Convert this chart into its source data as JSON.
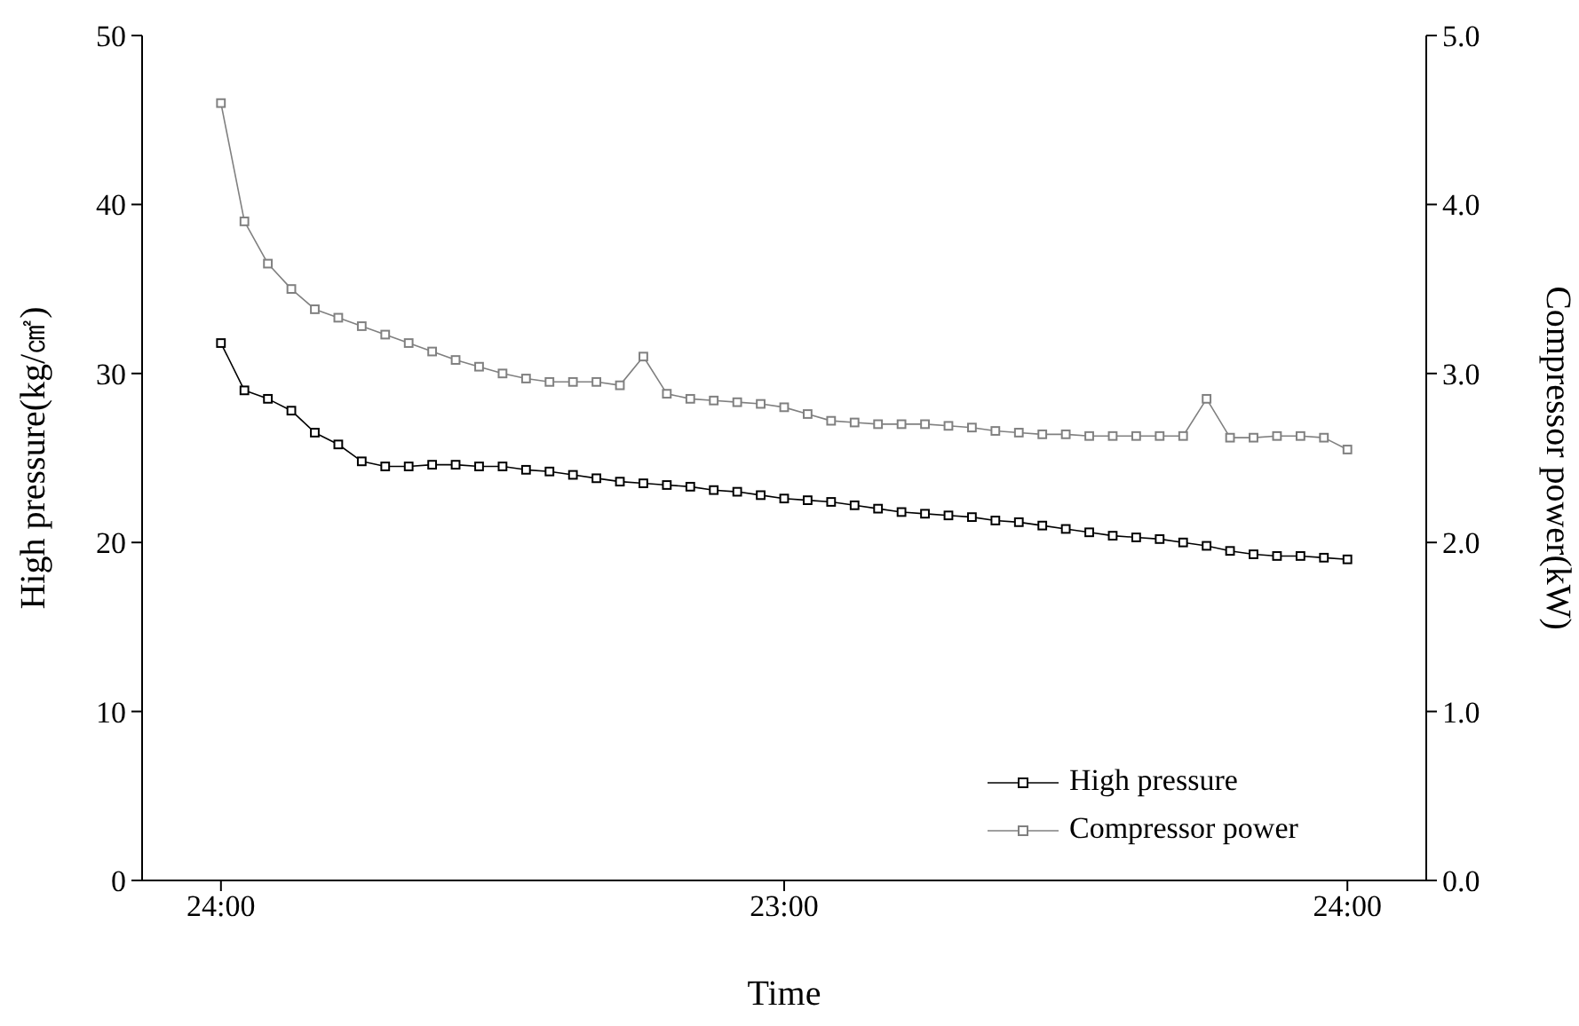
{
  "chart_data": {
    "type": "line",
    "xlabel": "Time",
    "ylabel": "High pressure(kg/㎠)",
    "y2label": "Compressor power(kW)",
    "categories": [
      "24:00",
      null,
      null,
      null,
      null,
      null,
      null,
      null,
      null,
      null,
      null,
      null,
      null,
      null,
      null,
      null,
      null,
      null,
      null,
      null,
      null,
      null,
      null,
      null,
      "23:00",
      null,
      null,
      null,
      null,
      null,
      null,
      null,
      null,
      null,
      null,
      null,
      null,
      null,
      null,
      null,
      null,
      null,
      null,
      null,
      null,
      null,
      null,
      null,
      "24:00"
    ],
    "ylim": [
      0,
      50
    ],
    "yticks": [
      0,
      10,
      20,
      30,
      40,
      50
    ],
    "y2lim": [
      0,
      5
    ],
    "y2ticks": [
      {
        "value": 0,
        "label": "0.0"
      },
      {
        "value": 1,
        "label": "1.0"
      },
      {
        "value": 2,
        "label": "2.0"
      },
      {
        "value": 3,
        "label": "3.0"
      },
      {
        "value": 4,
        "label": "4.0"
      },
      {
        "value": 5,
        "label": "5.0"
      }
    ],
    "marker": "square",
    "line_style": "solid",
    "legend": "bottom right",
    "series": [
      {
        "name": "High pressure",
        "color": "#000000",
        "values": [
          31.8,
          29.0,
          28.5,
          27.8,
          26.5,
          25.8,
          24.8,
          24.5,
          24.5,
          24.6,
          24.6,
          24.5,
          24.5,
          24.3,
          24.2,
          24.0,
          23.8,
          23.6,
          23.5,
          23.4,
          23.3,
          23.1,
          23.0,
          22.8,
          22.6,
          22.5,
          22.4,
          22.2,
          22.0,
          21.8,
          21.7,
          21.6,
          21.5,
          21.3,
          21.2,
          21.0,
          20.8,
          20.6,
          20.4,
          20.3,
          20.2,
          20.0,
          19.8,
          19.5,
          19.3,
          19.2,
          19.2,
          19.1,
          19.0
        ]
      },
      {
        "name": "Compressor power",
        "color": "#808080",
        "axis": "y2",
        "values": [
          4.6,
          3.9,
          3.65,
          3.5,
          3.38,
          3.33,
          3.28,
          3.23,
          3.18,
          3.13,
          3.08,
          3.04,
          3.0,
          2.97,
          2.95,
          2.95,
          2.95,
          2.93,
          3.1,
          2.88,
          2.85,
          2.84,
          2.83,
          2.82,
          2.8,
          2.76,
          2.72,
          2.71,
          2.7,
          2.7,
          2.7,
          2.69,
          2.68,
          2.66,
          2.65,
          2.64,
          2.64,
          2.63,
          2.63,
          2.63,
          2.63,
          2.63,
          2.85,
          2.62,
          2.62,
          2.63,
          2.63,
          2.62,
          2.55
        ]
      }
    ]
  }
}
